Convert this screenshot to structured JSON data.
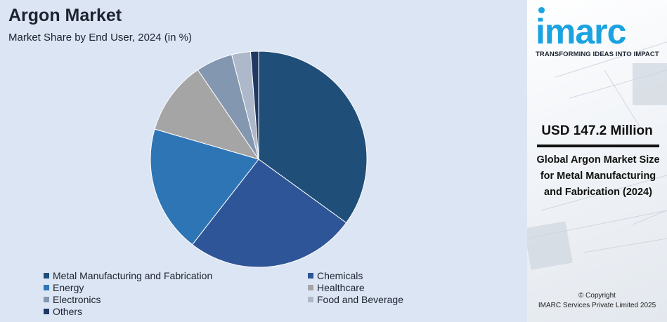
{
  "chart_data": {
    "type": "pie",
    "title": "Argon Market",
    "subtitle": "Market Share by End User, 2024 (in %)",
    "unit": "%",
    "slices": [
      {
        "label": "Metal Manufacturing and Fabrication",
        "value": 35.0,
        "color": "#1f4e79"
      },
      {
        "label": "Chemicals",
        "value": 25.5,
        "color": "#2e5597"
      },
      {
        "label": "Energy",
        "value": 19.0,
        "color": "#2e75b6"
      },
      {
        "label": "Healthcare",
        "value": 11.0,
        "color": "#a5a5a5"
      },
      {
        "label": "Electronics",
        "value": 5.5,
        "color": "#8497b0"
      },
      {
        "label": "Food and Beverage",
        "value": 2.8,
        "color": "#adb9ca"
      },
      {
        "label": "Others",
        "value": 1.2,
        "color": "#203864"
      }
    ],
    "start_angle_deg": 0,
    "direction": "clockwise"
  },
  "brand": {
    "logo": "imarc",
    "tagline": "TRANSFORMING IDEAS INTO IMPACT",
    "accent_color": "#1aa3e0"
  },
  "highlight": {
    "value": "USD 147.2 Million",
    "description": "Global Argon Market Size for Metal Manufacturing and Fabrication (2024)"
  },
  "footer": {
    "copyright_line1": "© Copyright",
    "copyright_line2": "IMARC Services Private Limited 2025"
  }
}
